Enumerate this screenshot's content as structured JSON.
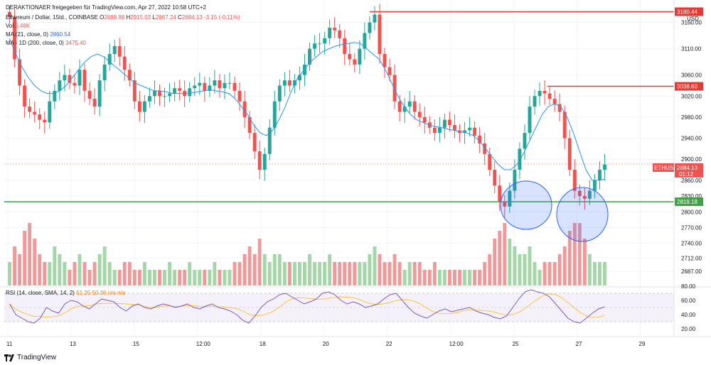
{
  "header": {
    "caption": "DERAKTIONAER freigegeben für TradingView.com, Apr 27, 2022 10:58 UTC+2",
    "symbol_line": "Ethereum / Dollar, 15td., COINBASE",
    "ohlc": {
      "o_label": "O",
      "o": "2888.88",
      "h_label": "H",
      "h": "2915.03",
      "l_label": "L",
      "l": "2867.24",
      "c_label": "C",
      "c": "2884.13",
      "chg": "-3.15 (-0.11%)"
    },
    "vol_label": "Vol",
    "vol_value": "6.48K",
    "ma21_label": "MA (21, close, 0)",
    "ma21_value": "2860.54",
    "ma200_label": "MA - 1D (200, close, 0)",
    "ma200_value": "3475.40",
    "rsi_label": "RSI (14, close, SMA, 14, 2)",
    "rsi_values": "51.25  50.36  n/a  n/a"
  },
  "footer": {
    "brand": "TradingView"
  },
  "chart_data": {
    "type": "candlestick",
    "symbol": "ETHUSD",
    "currency_label": "USD",
    "y_ticks": [
      "3160.00",
      "3110.00",
      "3060.00",
      "3020.00",
      "2980.00",
      "2940.00",
      "2900.00",
      "2860.00",
      "2830.00",
      "2800.00",
      "2770.00",
      "2740.00",
      "2712.00",
      "2687.00"
    ],
    "x_ticks": [
      "11",
      "13",
      "15",
      "12:00",
      "18",
      "20",
      "22",
      "12:00",
      "25",
      "27",
      "29"
    ],
    "price_tag": {
      "label": "ETHUSD",
      "price": "2884.13",
      "countdown": "01:12",
      "color": "#ef5350"
    },
    "levels": [
      {
        "label": "3180.44",
        "value": 3180.44,
        "color": "#e53935"
      },
      {
        "label": "3038.60",
        "value": 3038.6,
        "color": "#e53935"
      },
      {
        "label": "2819.18",
        "value": 2819.18,
        "color": "#43a047"
      }
    ],
    "highlight_circles": [
      {
        "center_x": "2022-04-25",
        "center_y": 2800
      },
      {
        "center_x": "2022-04-26",
        "center_y": 2790
      }
    ],
    "colors": {
      "up": "#26a69a",
      "down": "#ef5350",
      "ma21": "#2196f3",
      "rsi": "#7e57c2",
      "rsi_ma": "#fbc02d",
      "volume_up": "#a5d6a7",
      "volume_down": "#ef9a9a"
    },
    "price_series": [
      3170,
      3090,
      3040,
      3000,
      2990,
      2985,
      2975,
      2970,
      3010,
      3030,
      3050,
      3060,
      3045,
      3040,
      3070,
      3030,
      3015,
      3000,
      3050,
      3080,
      3100,
      3115,
      3095,
      3070,
      3050,
      3010,
      2990,
      3010,
      3020,
      3030,
      3020,
      3020,
      3025,
      3035,
      3030,
      3020,
      3035,
      3040,
      3045,
      3030,
      3040,
      3050,
      3035,
      3045,
      3045,
      3030,
      3010,
      2980,
      2950,
      2915,
      2880,
      2910,
      2960,
      3010,
      3040,
      3050,
      3040,
      3050,
      3060,
      3080,
      3110,
      3120,
      3120,
      3130,
      3150,
      3145,
      3130,
      3100,
      3090,
      3080,
      3110,
      3140,
      3160,
      3175,
      3100,
      3075,
      3060,
      3010,
      2990,
      3000,
      3010,
      2990,
      2980,
      2970,
      2960,
      2950,
      2960,
      2975,
      2965,
      2955,
      2950,
      2955,
      2960,
      2945,
      2930,
      2910,
      2880,
      2850,
      2820,
      2810,
      2840,
      2880,
      2920,
      2950,
      3000,
      3020,
      3030,
      3025,
      3015,
      3005,
      2990,
      2940,
      2880,
      2840,
      2830,
      2825,
      2840,
      2860,
      2880,
      2890
    ],
    "volume_series": [
      0.3,
      0.5,
      0.4,
      0.7,
      0.8,
      0.6,
      0.4,
      0.3,
      0.3,
      0.5,
      0.4,
      0.3,
      0.2,
      0.3,
      0.4,
      0.3,
      0.2,
      0.3,
      0.4,
      0.5,
      0.3,
      0.2,
      0.2,
      0.3,
      0.3,
      0.2,
      0.2,
      0.3,
      0.2,
      0.2,
      0.2,
      0.2,
      0.3,
      0.2,
      0.2,
      0.2,
      0.3,
      0.2,
      0.2,
      0.2,
      0.2,
      0.3,
      0.2,
      0.2,
      0.2,
      0.3,
      0.3,
      0.4,
      0.5,
      0.4,
      0.6,
      0.4,
      0.3,
      0.4,
      0.4,
      0.3,
      0.3,
      0.3,
      0.3,
      0.3,
      0.4,
      0.3,
      0.3,
      0.3,
      0.4,
      0.3,
      0.3,
      0.3,
      0.3,
      0.3,
      0.3,
      0.3,
      0.4,
      0.5,
      0.4,
      0.3,
      0.3,
      0.4,
      0.3,
      0.2,
      0.3,
      0.3,
      0.3,
      0.2,
      0.2,
      0.3,
      0.2,
      0.2,
      0.2,
      0.2,
      0.2,
      0.2,
      0.2,
      0.2,
      0.2,
      0.3,
      0.4,
      0.6,
      0.7,
      0.8,
      0.6,
      0.5,
      0.4,
      0.4,
      0.5,
      0.3,
      0.2,
      0.3,
      0.3,
      0.3,
      0.4,
      0.5,
      0.7,
      0.8,
      0.8,
      0.6,
      0.4,
      0.3,
      0.3,
      0.3
    ],
    "ma21_series": [
      3130,
      3100,
      3075,
      3055,
      3040,
      3030,
      3025,
      3025,
      3030,
      3040,
      3055,
      3070,
      3085,
      3095,
      3100,
      3095,
      3085,
      3075,
      3065,
      3055,
      3045,
      3040,
      3035,
      3030,
      3030,
      3028,
      3025,
      3025,
      3025,
      3026,
      3028,
      3030,
      3032,
      3030,
      3028,
      3025,
      3015,
      3000,
      2985,
      2965,
      2950,
      2945,
      2955,
      2975,
      3000,
      3030,
      3055,
      3070,
      3085,
      3095,
      3105,
      3110,
      3115,
      3118,
      3120,
      3122,
      3120,
      3110,
      3100,
      3090,
      3070,
      3045,
      3020,
      3000,
      2985,
      2975,
      2970,
      2965,
      2962,
      2960,
      2957,
      2955,
      2952,
      2950,
      2945,
      2935,
      2920,
      2905,
      2890,
      2880,
      2880,
      2890,
      2910,
      2935,
      2960,
      2985,
      3000,
      3005,
      3000,
      2980,
      2950,
      2915,
      2880,
      2860,
      2860,
      2862
    ],
    "rsi_series": [
      55,
      40,
      35,
      30,
      28,
      35,
      50,
      45,
      42,
      55,
      60,
      58,
      52,
      48,
      55,
      62,
      60,
      58,
      50,
      45,
      52,
      55,
      50,
      48,
      52,
      55,
      53,
      50,
      52,
      55,
      50,
      48,
      52,
      55,
      50,
      48,
      45,
      40,
      32,
      28,
      38,
      50,
      58,
      62,
      68,
      70,
      65,
      60,
      55,
      58,
      62,
      70,
      72,
      68,
      60,
      55,
      58,
      55,
      50,
      52,
      55,
      62,
      68,
      70,
      60,
      50,
      42,
      38,
      35,
      40,
      45,
      48,
      44,
      46,
      48,
      50,
      45,
      42,
      40,
      36,
      34,
      38,
      50,
      62,
      72,
      75,
      72,
      70,
      65,
      55,
      45,
      35,
      30,
      28,
      35,
      42,
      48,
      51
    ],
    "rsi_ticks": [
      "80.00",
      "60.00",
      "40.00",
      "20.00"
    ]
  }
}
